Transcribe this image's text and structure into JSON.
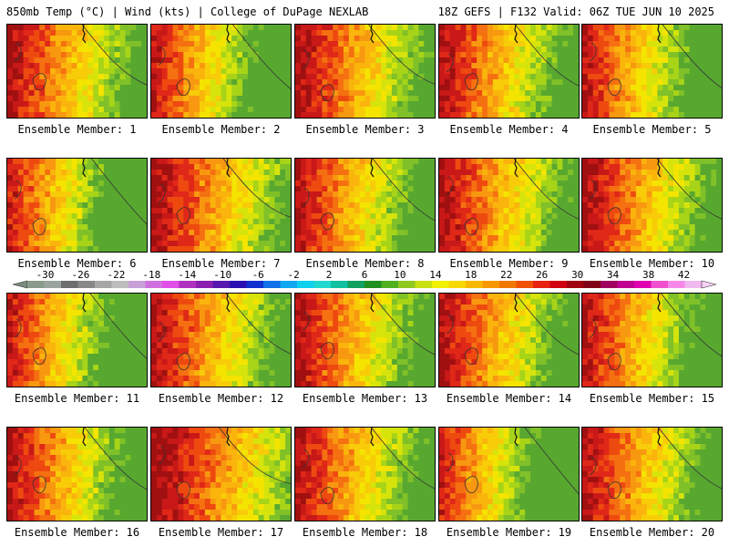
{
  "header": {
    "left": "850mb Temp (°C) | Wind (kts) | College of DuPage NEXLAB",
    "right": "18Z GEFS | F132 Valid: 06Z TUE JUN 10 2025"
  },
  "panels": [
    {
      "label": "Ensemble Member: 1",
      "w": 0.35
    },
    {
      "label": "Ensemble Member: 2",
      "w": 0.6
    },
    {
      "label": "Ensemble Member: 3",
      "w": 0.3
    },
    {
      "label": "Ensemble Member: 4",
      "w": 0.4
    },
    {
      "label": "Ensemble Member: 5",
      "w": 0.55
    },
    {
      "label": "Ensemble Member: 6",
      "w": 0.7
    },
    {
      "label": "Ensemble Member: 7",
      "w": 0.25
    },
    {
      "label": "Ensemble Member: 8",
      "w": 0.45
    },
    {
      "label": "Ensemble Member: 9",
      "w": 0.35
    },
    {
      "label": "Ensemble Member: 10",
      "w": 0.35
    },
    {
      "label": "Ensemble Member: 11",
      "w": 0.65
    },
    {
      "label": "Ensemble Member: 12",
      "w": 0.35
    },
    {
      "label": "Ensemble Member: 13",
      "w": 0.4
    },
    {
      "label": "Ensemble Member: 14",
      "w": 0.4
    },
    {
      "label": "Ensemble Member: 15",
      "w": 0.5
    },
    {
      "label": "Ensemble Member: 16",
      "w": 0.45
    },
    {
      "label": "Ensemble Member: 17",
      "w": 0.1
    },
    {
      "label": "Ensemble Member: 18",
      "w": 0.4
    },
    {
      "label": "Ensemble Member: 19",
      "w": 0.75
    },
    {
      "label": "Ensemble Member: 20",
      "w": 0.4
    }
  ],
  "colorbar": {
    "ticks": [
      "-30",
      "-26",
      "-22",
      "-18",
      "-14",
      "-10",
      "-6",
      "-2",
      "2",
      "6",
      "10",
      "14",
      "18",
      "22",
      "26",
      "30",
      "34",
      "38",
      "42"
    ],
    "colors": [
      "#8a9a8a",
      "#9aa5a0",
      "#6e6e6e",
      "#888888",
      "#a6a6a6",
      "#bdbdbd",
      "#c8a0d8",
      "#d070e0",
      "#e050e8",
      "#b030c0",
      "#8a20b0",
      "#5818b0",
      "#2a10b0",
      "#1030d0",
      "#1070e8",
      "#10a8f0",
      "#10d0f0",
      "#20d8d0",
      "#10c0a0",
      "#10a060",
      "#209020",
      "#50b020",
      "#90c820",
      "#c8e010",
      "#f0f000",
      "#f8d800",
      "#f8b800",
      "#f89800",
      "#f07800",
      "#f05000",
      "#e82010",
      "#d00010",
      "#a00010",
      "#800018",
      "#a00060",
      "#c00090",
      "#e000b0",
      "#f050d0",
      "#f888e8",
      "#f0b8f0"
    ]
  },
  "chart_data": {
    "type": "heatmap",
    "title": "850mb Temp (°C) | Wind (kts)",
    "subtitle": "18Z GEFS | F132 Valid: 06Z TUE JUN 10 2025",
    "variable": "850mb temperature",
    "units": "°C",
    "colorbar_ticks": [
      -30,
      -26,
      -22,
      -18,
      -14,
      -10,
      -6,
      -2,
      2,
      6,
      10,
      14,
      18,
      22,
      26,
      30,
      34,
      38,
      42
    ],
    "colorbar_range": [
      -32,
      44
    ],
    "panels": [
      "Ensemble Member: 1",
      "Ensemble Member: 2",
      "Ensemble Member: 3",
      "Ensemble Member: 4",
      "Ensemble Member: 5",
      "Ensemble Member: 6",
      "Ensemble Member: 7",
      "Ensemble Member: 8",
      "Ensemble Member: 9",
      "Ensemble Member: 10",
      "Ensemble Member: 11",
      "Ensemble Member: 12",
      "Ensemble Member: 13",
      "Ensemble Member: 14",
      "Ensemble Member: 15",
      "Ensemble Member: 16",
      "Ensemble Member: 17",
      "Ensemble Member: 18",
      "Ensemble Member: 19",
      "Ensemble Member: 20"
    ],
    "pattern": "warm (26-30) in west/southwest, cooling to 10-18 toward north/northeast"
  }
}
